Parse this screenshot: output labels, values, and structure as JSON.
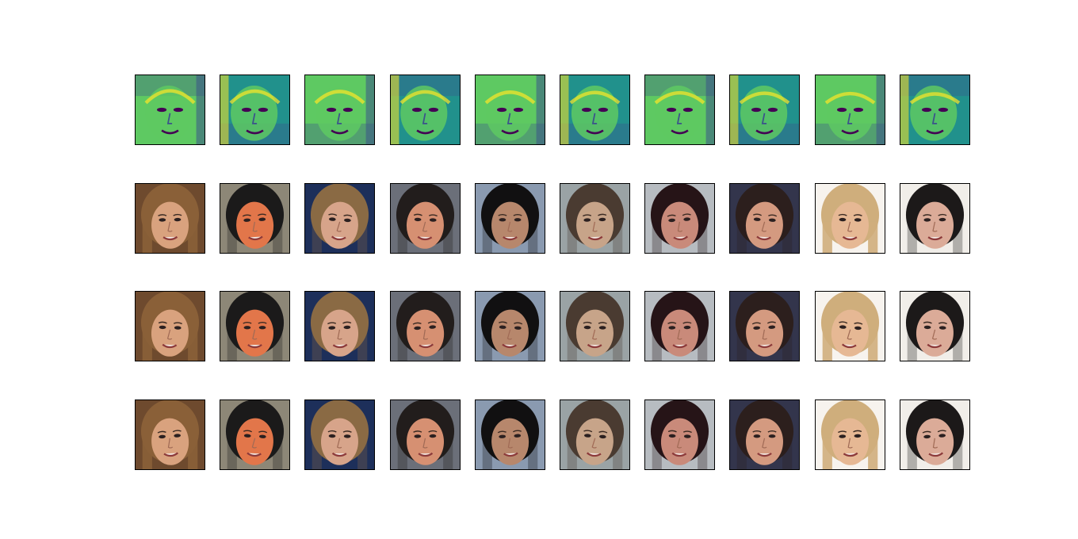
{
  "figure": {
    "rows": [
      {
        "role": "heatmap-map",
        "cmap": "viridis",
        "count": 10
      },
      {
        "role": "face-image",
        "count": 10
      },
      {
        "role": "face-image",
        "count": 10
      },
      {
        "role": "face-image",
        "count": 10
      }
    ],
    "palettes": {
      "viridis": [
        "#440154",
        "#3b528b",
        "#21918c",
        "#5ec962",
        "#fde725"
      ],
      "faces": [
        {
          "bg": "#6e4a2e",
          "hair": "#8a6038",
          "skin": "#d9a27e"
        },
        {
          "bg": "#8d8777",
          "hair": "#1b1a1a",
          "skin": "#e2764a"
        },
        {
          "bg": "#1d2f5a",
          "hair": "#8a6a44",
          "skin": "#d7a48a"
        },
        {
          "bg": "#6b6f79",
          "hair": "#221d1c",
          "skin": "#d69072"
        },
        {
          "bg": "#8a9ab0",
          "hair": "#111011",
          "skin": "#b7876c"
        },
        {
          "bg": "#9aa3a5",
          "hair": "#4a3b31",
          "skin": "#c7a489"
        },
        {
          "bg": "#b7bcc1",
          "hair": "#261417",
          "skin": "#c98a7a"
        },
        {
          "bg": "#33354c",
          "hair": "#2c1f1d",
          "skin": "#d49a80"
        },
        {
          "bg": "#f7f3ee",
          "hair": "#cfae7c",
          "skin": "#e6b894"
        },
        {
          "bg": "#f1eee9",
          "hair": "#1c1919",
          "skin": "#dbab98"
        }
      ]
    }
  }
}
